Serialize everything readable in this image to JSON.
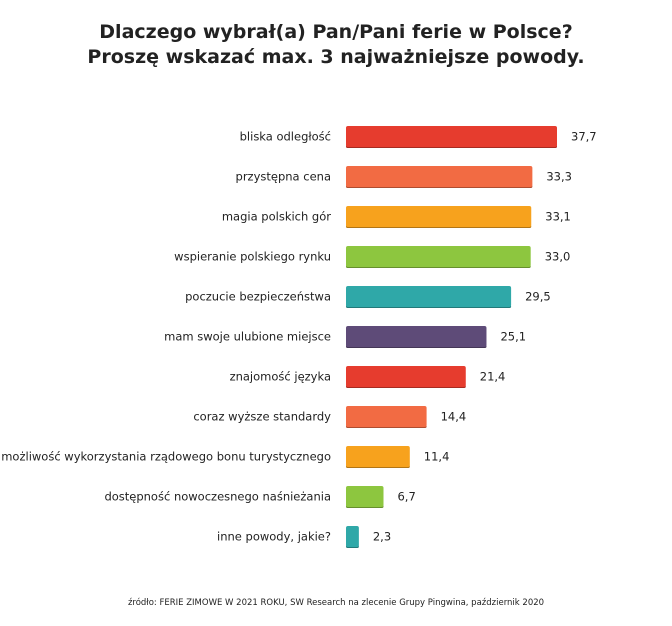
{
  "title_line1": "Dlaczego wybrał(a) Pan/Pani ferie w Polsce?",
  "title_line2": "Proszę wskazać max. 3 najważniejsze powody.",
  "source": "źródło: FERIE ZIMOWE W 2021 ROKU, SW Research na zlecenie Grupy Pingwina, październik 2020",
  "chart_data": {
    "type": "bar",
    "orientation": "horizontal",
    "categories": [
      "bliska odległość",
      "przystępna cena",
      "magia polskich gór",
      "wspieranie polskiego rynku",
      "poczucie bezpieczeństwa",
      "mam swoje ulubione miejsce",
      "znajomość języka",
      "coraz wyższe standardy",
      "możliwość wykorzystania rządowego bonu turystycznego",
      "dostępność nowoczesnego naśnieżania",
      "inne powody, jakie?"
    ],
    "values": [
      37.7,
      33.3,
      33.1,
      33.0,
      29.5,
      25.1,
      21.4,
      14.4,
      11.4,
      6.7,
      2.3
    ],
    "value_labels": [
      "37,7",
      "33,3",
      "33,1",
      "33,0",
      "29,5",
      "25,1",
      "21,4",
      "14,4",
      "11,4",
      "6,7",
      "2,3"
    ],
    "colors": [
      "#e63c2e",
      "#f26b43",
      "#f7a21d",
      "#8dc63f",
      "#2fa8a8",
      "#5e4b78",
      "#e63c2e",
      "#f26b43",
      "#f7a21d",
      "#8dc63f",
      "#2fa8a8"
    ],
    "title": "",
    "xlabel": "",
    "ylabel": "",
    "xlim": [
      0,
      37.7
    ],
    "grid": false,
    "legend": "none"
  }
}
